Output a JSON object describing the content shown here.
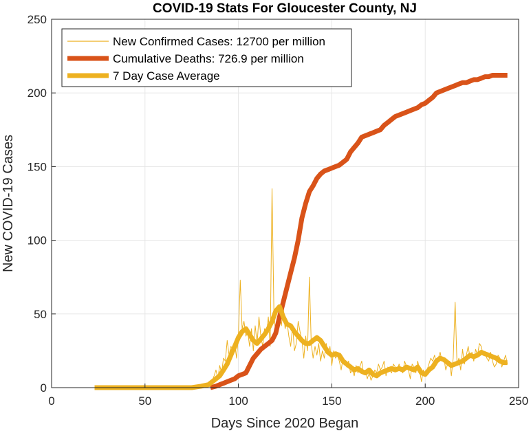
{
  "chart_data": {
    "type": "line",
    "title": "COVID-19 Stats For Gloucester County, NJ",
    "xlabel": "Days Since 2020 Began",
    "ylabel": "New COVID-19 Cases",
    "xlim": [
      0,
      250
    ],
    "ylim": [
      0,
      250
    ],
    "xticks": [
      0,
      50,
      100,
      150,
      200,
      250
    ],
    "yticks": [
      0,
      50,
      100,
      150,
      200,
      250
    ],
    "grid": true,
    "legend_position": "top-left",
    "series": [
      {
        "name": "New Confirmed Cases: 12700 per million",
        "color": "#EDB120",
        "style": "thin",
        "x": [
          23,
          30,
          40,
          50,
          60,
          70,
          78,
          80,
          82,
          84,
          85,
          86,
          87,
          88,
          89,
          90,
          91,
          92,
          93,
          94,
          95,
          96,
          97,
          98,
          99,
          100,
          101,
          102,
          103,
          104,
          105,
          106,
          107,
          108,
          109,
          110,
          111,
          112,
          113,
          114,
          115,
          116,
          117,
          118,
          119,
          120,
          121,
          122,
          123,
          124,
          125,
          126,
          127,
          128,
          129,
          130,
          131,
          132,
          133,
          134,
          135,
          136,
          137,
          138,
          139,
          140,
          141,
          142,
          143,
          144,
          145,
          146,
          147,
          148,
          149,
          150,
          151,
          152,
          153,
          154,
          155,
          156,
          157,
          158,
          159,
          160,
          161,
          162,
          163,
          164,
          165,
          166,
          167,
          168,
          169,
          170,
          171,
          172,
          173,
          174,
          175,
          176,
          177,
          178,
          179,
          180,
          181,
          182,
          183,
          184,
          185,
          186,
          187,
          188,
          189,
          190,
          191,
          192,
          193,
          194,
          195,
          196,
          197,
          198,
          199,
          200,
          201,
          202,
          203,
          204,
          205,
          206,
          207,
          208,
          209,
          210,
          211,
          212,
          213,
          214,
          215,
          216,
          217,
          218,
          219,
          220,
          221,
          222,
          223,
          224,
          225,
          226,
          227,
          228,
          229,
          230,
          231,
          232,
          233,
          234,
          235,
          236,
          237,
          238,
          239,
          240,
          241,
          242,
          243,
          244
        ],
        "values": [
          0,
          0,
          0,
          0,
          0,
          0,
          0,
          1,
          2,
          3,
          4,
          5,
          8,
          12,
          6,
          15,
          10,
          20,
          18,
          32,
          22,
          28,
          26,
          30,
          20,
          35,
          73,
          40,
          45,
          35,
          38,
          28,
          40,
          25,
          42,
          30,
          48,
          35,
          28,
          40,
          36,
          48,
          28,
          135,
          52,
          35,
          45,
          50,
          42,
          55,
          40,
          45,
          35,
          28,
          42,
          25,
          30,
          45,
          38,
          32,
          20,
          35,
          25,
          75,
          30,
          20,
          28,
          22,
          30,
          18,
          25,
          20,
          30,
          22,
          28,
          15,
          25,
          20,
          22,
          18,
          12,
          20,
          16,
          14,
          18,
          10,
          12,
          8,
          15,
          10,
          14,
          18,
          9,
          12,
          6,
          10,
          5,
          8,
          12,
          10,
          16,
          12,
          14,
          18,
          8,
          14,
          12,
          10,
          16,
          14,
          12,
          16,
          12,
          10,
          18,
          14,
          12,
          6,
          16,
          14,
          10,
          18,
          12,
          4,
          12,
          8,
          12,
          16,
          20,
          18,
          22,
          16,
          20,
          24,
          18,
          20,
          12,
          16,
          18,
          8,
          20,
          58,
          16,
          20,
          12,
          26,
          16,
          22,
          28,
          20,
          24,
          18,
          26,
          22,
          30,
          28,
          22,
          24,
          20,
          18,
          24,
          18,
          14,
          16,
          22,
          20,
          14,
          18,
          22,
          16
        ]
      },
      {
        "name": "Cumulative Deaths: 726.9 per million",
        "color": "#D95319",
        "style": "thick",
        "x": [
          85,
          88,
          90,
          92,
          94,
          96,
          98,
          100,
          102,
          104,
          106,
          108,
          110,
          112,
          114,
          116,
          118,
          120,
          122,
          124,
          126,
          128,
          130,
          132,
          134,
          136,
          138,
          140,
          142,
          144,
          146,
          148,
          150,
          152,
          154,
          156,
          158,
          160,
          162,
          164,
          166,
          168,
          170,
          172,
          174,
          176,
          178,
          180,
          182,
          184,
          186,
          188,
          190,
          192,
          194,
          196,
          198,
          200,
          202,
          204,
          206,
          208,
          210,
          212,
          214,
          216,
          218,
          220,
          222,
          224,
          226,
          228,
          230,
          232,
          234,
          236,
          238,
          240,
          242,
          244
        ],
        "values": [
          0,
          1,
          2,
          3,
          4,
          5,
          6,
          8,
          9,
          10,
          15,
          20,
          23,
          26,
          28,
          30,
          32,
          37,
          48,
          58,
          68,
          78,
          88,
          100,
          115,
          125,
          133,
          137,
          142,
          145,
          147,
          148,
          149,
          150,
          151,
          153,
          155,
          160,
          163,
          166,
          170,
          171,
          172,
          173,
          174,
          175,
          178,
          180,
          182,
          184,
          185,
          186,
          187,
          188,
          189,
          190,
          192,
          193,
          195,
          197,
          200,
          201,
          202,
          203,
          204,
          205,
          206,
          207,
          207,
          208,
          209,
          209,
          210,
          211,
          211,
          212,
          212,
          212,
          212,
          212
        ],
        "_note": "x/y in data units"
      },
      {
        "name": "7 Day Case Average",
        "color": "#EDB120",
        "style": "thick",
        "x": [
          23,
          40,
          60,
          75,
          80,
          84,
          86,
          88,
          90,
          92,
          94,
          96,
          98,
          100,
          102,
          104,
          106,
          108,
          110,
          112,
          114,
          116,
          118,
          120,
          122,
          124,
          126,
          128,
          130,
          132,
          134,
          136,
          138,
          140,
          142,
          144,
          146,
          148,
          150,
          152,
          154,
          156,
          158,
          160,
          162,
          164,
          166,
          168,
          170,
          172,
          174,
          176,
          178,
          180,
          182,
          184,
          186,
          188,
          190,
          192,
          194,
          196,
          198,
          200,
          202,
          204,
          206,
          208,
          210,
          212,
          214,
          216,
          218,
          220,
          222,
          224,
          226,
          228,
          230,
          232,
          234,
          236,
          238,
          240,
          242,
          244
        ],
        "values": [
          0,
          0,
          0,
          0,
          1,
          2,
          4,
          6,
          8,
          12,
          16,
          22,
          28,
          34,
          38,
          40,
          36,
          32,
          30,
          33,
          36,
          40,
          45,
          52,
          55,
          48,
          43,
          42,
          38,
          35,
          32,
          30,
          30,
          32,
          34,
          32,
          28,
          24,
          22,
          23,
          22,
          18,
          16,
          14,
          12,
          13,
          11,
          10,
          12,
          9,
          8,
          10,
          11,
          12,
          13,
          12,
          13,
          12,
          14,
          13,
          12,
          14,
          10,
          9,
          12,
          14,
          18,
          20,
          19,
          17,
          15,
          16,
          17,
          18,
          20,
          22,
          21,
          22,
          24,
          23,
          22,
          21,
          20,
          18,
          17,
          17
        ]
      }
    ]
  }
}
